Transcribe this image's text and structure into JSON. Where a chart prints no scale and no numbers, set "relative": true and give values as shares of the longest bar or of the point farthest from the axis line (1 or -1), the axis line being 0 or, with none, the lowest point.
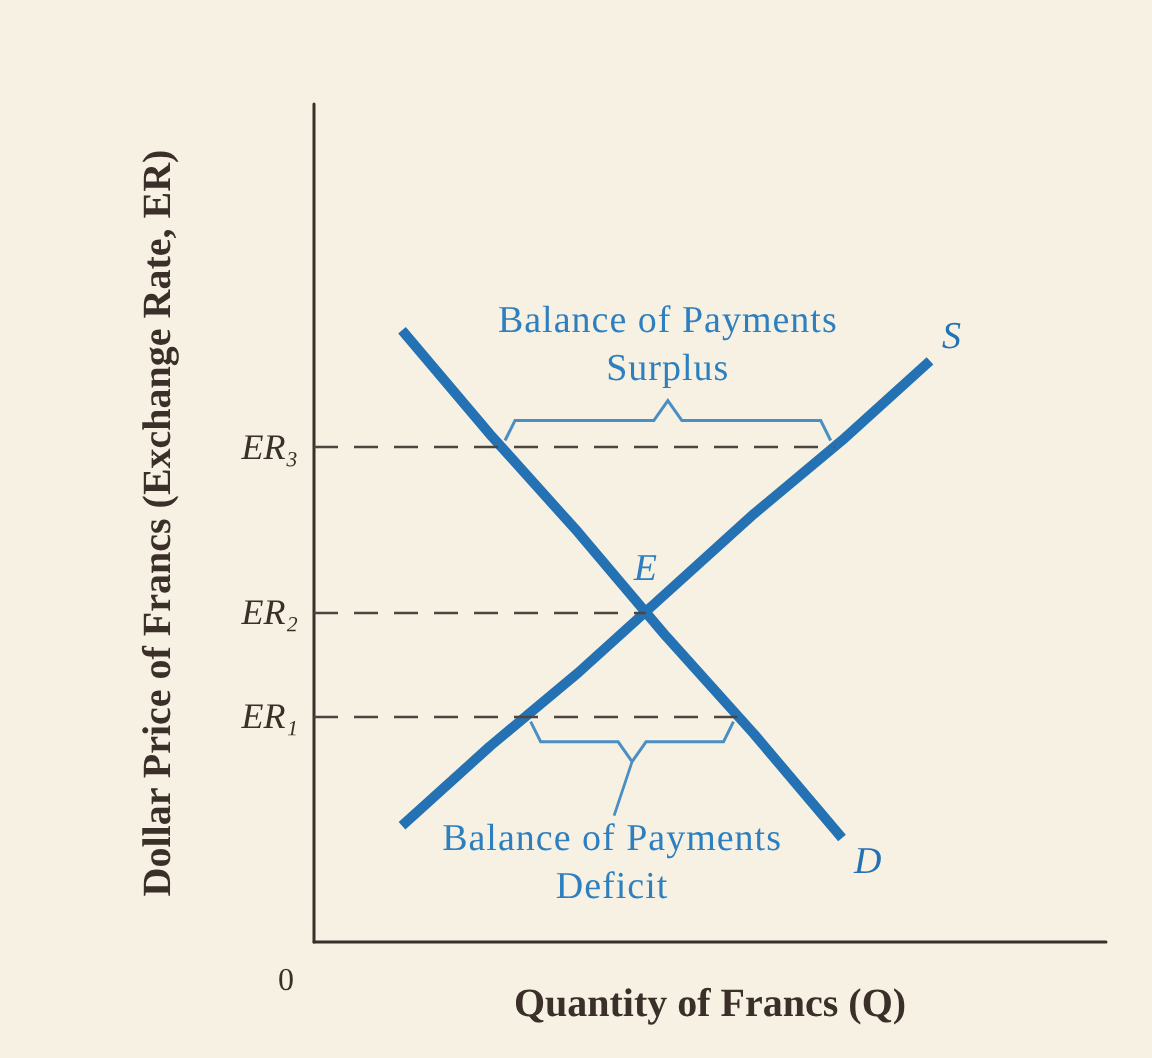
{
  "chart_data": {
    "type": "line",
    "relative": true,
    "xlabel": "Quantity of Francs (Q)",
    "ylabel": "Dollar Price of Francs (Exchange Rate, ER)",
    "categories": [
      null,
      null,
      null,
      null,
      null,
      null,
      null,
      null,
      null,
      null
    ],
    "series": [
      {
        "name": "S",
        "color": "#2472b4",
        "values": [
          null,
          0.19,
          0.32,
          0.44,
          0.57,
          0.7,
          0.82,
          0.95,
          null,
          null
        ]
      },
      {
        "name": "D",
        "color": "#2472b4",
        "values": [
          null,
          1,
          0.83,
          0.67,
          0.5,
          0.34,
          0.17,
          null,
          null,
          null
        ]
      }
    ],
    "marker": "none",
    "line_style": "solid",
    "ref_lines": [
      {
        "axis": "y",
        "value": 0.81,
        "label": "ER₃",
        "color": "#4d4540",
        "line_style": "dashed"
      },
      {
        "axis": "y",
        "value": 0.54,
        "label": "ER₂",
        "color": "#4d4540",
        "line_style": "dashed"
      },
      {
        "axis": "y",
        "value": 0.37,
        "label": "ER₁",
        "color": "#4d4540",
        "line_style": "dashed"
      }
    ],
    "annotations": [
      {
        "text": "Balance of Payments\nSurplus",
        "y": 0.81
      },
      {
        "text": "E",
        "y": 0.54
      },
      {
        "text": "Balance of Payments\nDeficit",
        "y": 0.37
      },
      "0"
    ]
  }
}
